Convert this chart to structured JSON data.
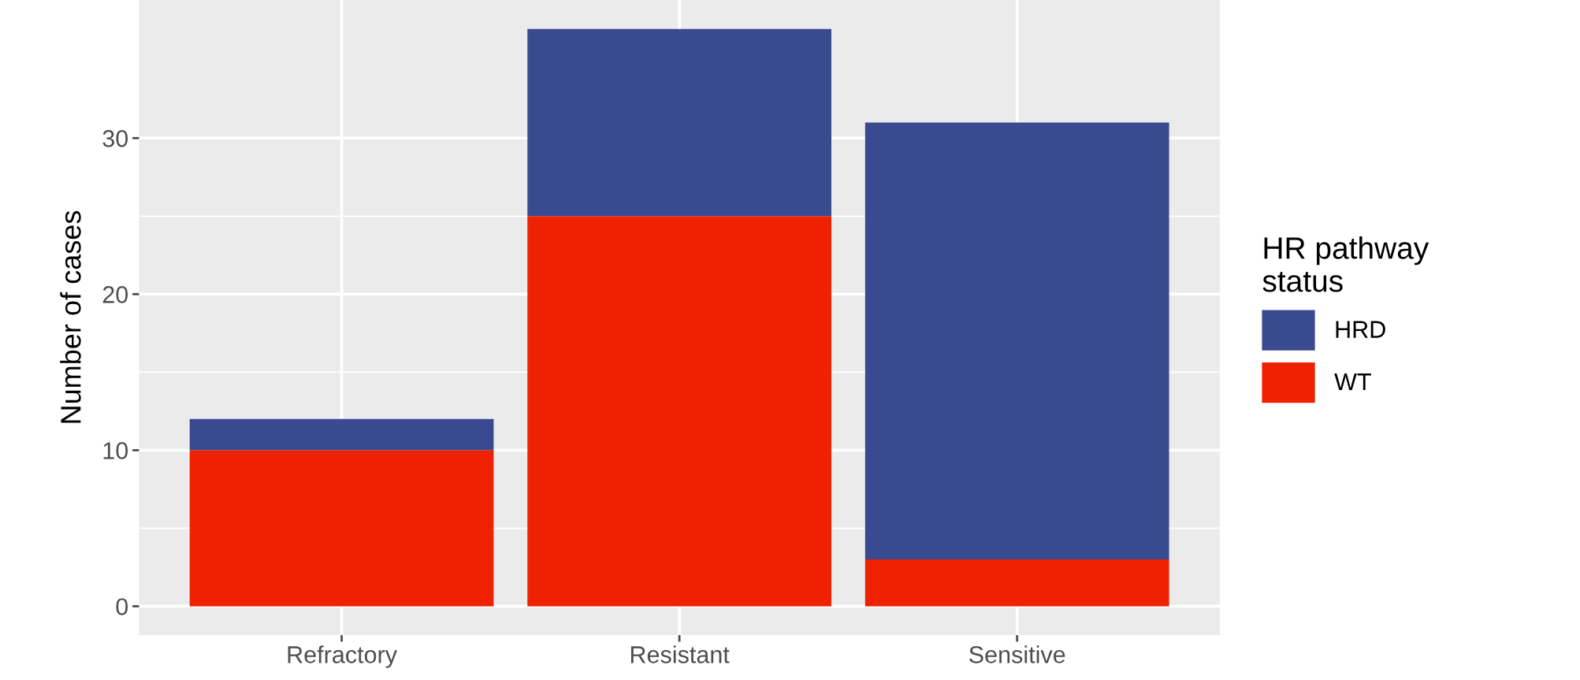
{
  "chart_data": {
    "type": "bar",
    "stacked": true,
    "ylabel": "Number of cases",
    "legend_title": "HR pathway\nstatus",
    "categories": [
      "Refractory",
      "Resistant",
      "Sensitive"
    ],
    "series": [
      {
        "name": "WT",
        "color": "#ee2200",
        "values": [
          10,
          25,
          3
        ]
      },
      {
        "name": "HRD",
        "color": "#3a4a91",
        "values": [
          2,
          12,
          28
        ]
      }
    ],
    "ylim": [
      -1.85,
      38.85
    ],
    "yticks": [
      0,
      10,
      20,
      30
    ],
    "grid": true,
    "legend": "right"
  }
}
